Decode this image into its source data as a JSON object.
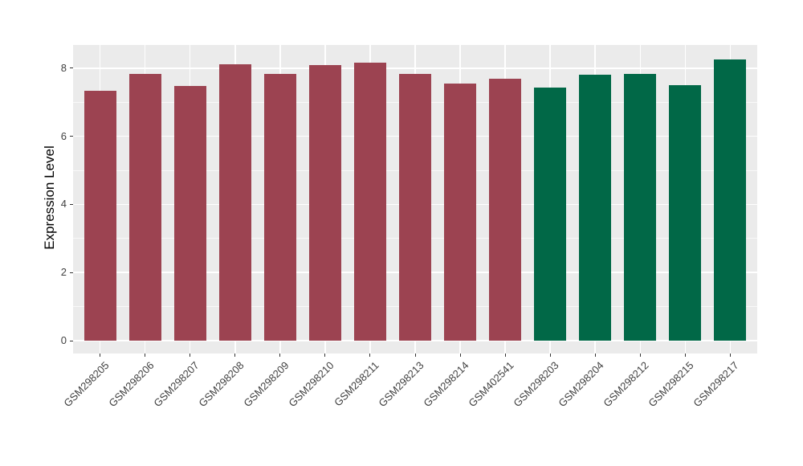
{
  "chart_data": {
    "type": "bar",
    "title": "",
    "xlabel": "",
    "ylabel": "Expression Level",
    "categories": [
      "GSM298205",
      "GSM298206",
      "GSM298207",
      "GSM298208",
      "GSM298209",
      "GSM298210",
      "GSM298211",
      "GSM298213",
      "GSM298214",
      "GSM402541",
      "GSM298203",
      "GSM298204",
      "GSM298212",
      "GSM298215",
      "GSM298217"
    ],
    "values": [
      7.33,
      7.84,
      7.48,
      8.11,
      7.82,
      8.09,
      8.17,
      7.84,
      7.54,
      7.68,
      7.42,
      7.81,
      7.84,
      7.49,
      8.25
    ],
    "bar_colors": [
      "#9C4351",
      "#9C4351",
      "#9C4351",
      "#9C4351",
      "#9C4351",
      "#9C4351",
      "#9C4351",
      "#9C4351",
      "#9C4351",
      "#9C4351",
      "#016847",
      "#016847",
      "#016847",
      "#016847",
      "#016847"
    ],
    "group_colors": {
      "group1": "#9C4351",
      "group2": "#016847"
    },
    "yticks": [
      0,
      2,
      4,
      6,
      8
    ],
    "minor_yticks": [
      1,
      3,
      5,
      7
    ],
    "ylim": [
      -0.38,
      8.68
    ],
    "grid": true,
    "legend_position": "none",
    "panel_background": "#EBEBEB",
    "gridline_color": "#FFFFFF",
    "tick_color": "#333333",
    "axis_text_color": "#404040"
  }
}
